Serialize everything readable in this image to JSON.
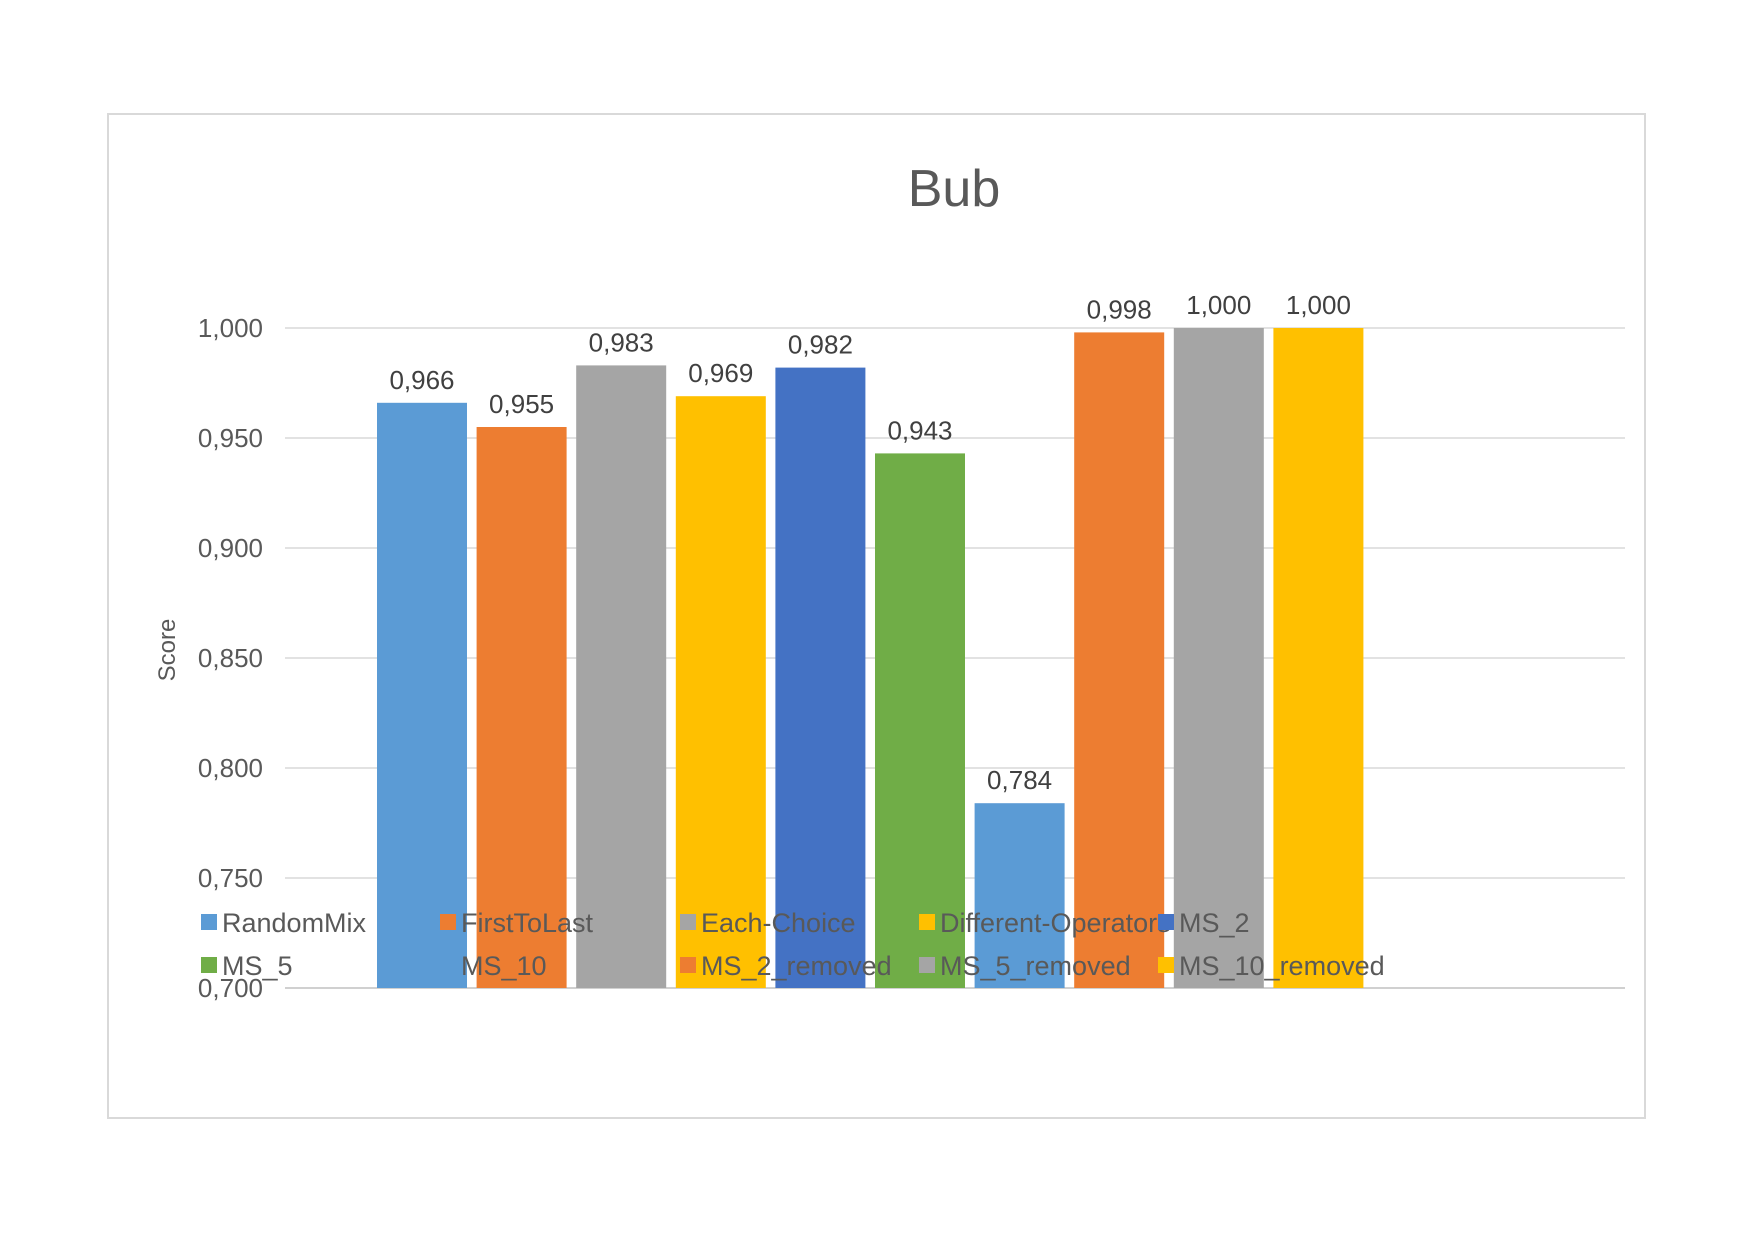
{
  "chart_data": {
    "type": "bar",
    "title": "Bub",
    "xlabel": "",
    "ylabel": "Score",
    "ylim": [
      0.7,
      1.0
    ],
    "yticks": [
      "0,700",
      "0,750",
      "0,800",
      "0,850",
      "0,900",
      "0,950",
      "1,000"
    ],
    "ytick_values": [
      0.7,
      0.75,
      0.8,
      0.85,
      0.9,
      0.95,
      1.0
    ],
    "grid": true,
    "legend_position": "bottom",
    "series": [
      {
        "name": "RandomMix",
        "value": 0.966,
        "label": "0,966",
        "color": "#5B9BD5"
      },
      {
        "name": "FirstToLast",
        "value": 0.955,
        "label": "0,955",
        "color": "#ED7D31"
      },
      {
        "name": "Each-Choice",
        "value": 0.983,
        "label": "0,983",
        "color": "#A5A5A5"
      },
      {
        "name": "Different-Operators",
        "value": 0.969,
        "label": "0,969",
        "color": "#FFC000"
      },
      {
        "name": "MS_2",
        "value": 0.982,
        "label": "0,982",
        "color": "#4472C4"
      },
      {
        "name": "MS_5",
        "value": 0.943,
        "label": "0,943",
        "color": "#70AD47"
      },
      {
        "name": "MS_10",
        "value": 0.784,
        "label": "0,784",
        "color": "#5B9BD5"
      },
      {
        "name": "MS_2_removed",
        "value": 0.998,
        "label": "0,998",
        "color": "#ED7D31"
      },
      {
        "name": "MS_5_removed",
        "value": 1.0,
        "label": "1,000",
        "color": "#A5A5A5"
      },
      {
        "name": "MS_10_removed",
        "value": 1.0,
        "label": "1,000",
        "color": "#FFC000"
      }
    ]
  }
}
